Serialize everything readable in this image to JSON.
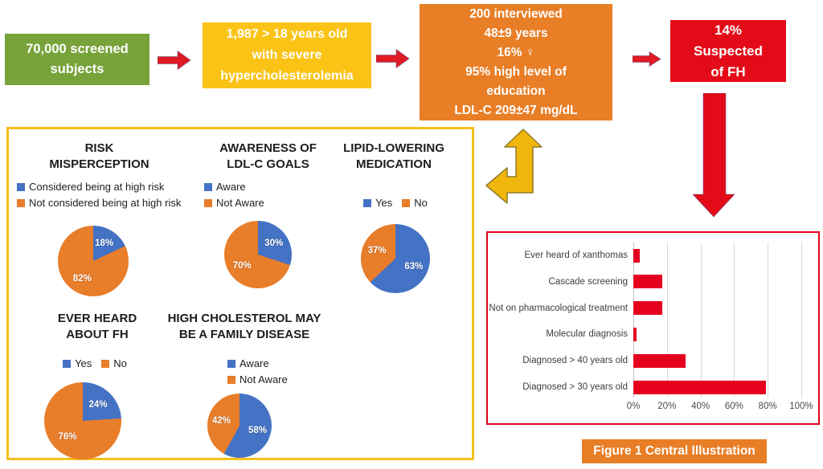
{
  "flow": {
    "box1": {
      "lines": [
        "70,000 screened",
        "subjects"
      ],
      "color": "#77A33A"
    },
    "box2": {
      "lines": [
        "1,987 > 18 years old",
        "with severe",
        "hypercholesterolemia"
      ],
      "color": "#FBC316"
    },
    "box3": {
      "lines": [
        "200 interviewed",
        "48±9 years",
        "16% ♀",
        "95% high level of",
        "education",
        "LDL-C 209±47 mg/dL"
      ],
      "color": "#E87E25"
    },
    "box4": {
      "lines": [
        "14%",
        "Suspected",
        "of FH"
      ],
      "color": "#E30B17"
    }
  },
  "figure_label": "Figure 1 Central Illustration",
  "colors": {
    "green": "#77A33A",
    "yellow": "#FBC316",
    "orange": "#E87E25",
    "red": "#E30B17",
    "bar_red": "#E4001E",
    "pie_blue": "#4472C4",
    "pie_orange": "#E87D2A",
    "survey_panel_border": "#F4C01C",
    "bar_panel_border": "#E3041A",
    "elbow_arrow_yellow": "#F0B60D"
  },
  "chart_data": [
    {
      "type": "pie",
      "id": "risk-misperception",
      "title": "RISK MISPERCEPTION",
      "title_lines": [
        "RISK",
        "MISPERCEPTION"
      ],
      "legend_layout": "stacked",
      "labels": [
        "Considered being at high risk",
        "Not considered being at high risk"
      ],
      "values": [
        18,
        82
      ],
      "value_labels": [
        "18%",
        "82%"
      ],
      "colors": [
        "#4472C4",
        "#E87D2A"
      ]
    },
    {
      "type": "pie",
      "id": "awareness-ldlc-goals",
      "title": "AWARENESS OF LDL-C GOALS",
      "title_lines": [
        "AWARENESS OF",
        "LDL-C GOALS"
      ],
      "legend_layout": "stacked",
      "labels": [
        "Aware",
        "Not Aware"
      ],
      "values": [
        30,
        70
      ],
      "value_labels": [
        "30%",
        "70%"
      ],
      "colors": [
        "#4472C4",
        "#E87D2A"
      ]
    },
    {
      "type": "pie",
      "id": "lipid-lowering-medication",
      "title": "LIPID-LOWERING MEDICATION",
      "title_lines": [
        "LIPID-LOWERING",
        "MEDICATION"
      ],
      "legend_layout": "inline",
      "labels": [
        "Yes",
        "No"
      ],
      "values": [
        63,
        37
      ],
      "value_labels": [
        "63%",
        "37%"
      ],
      "colors": [
        "#4472C4",
        "#E87D2A"
      ]
    },
    {
      "type": "pie",
      "id": "ever-heard-about-fh",
      "title": "EVER HEARD ABOUT FH",
      "title_lines": [
        "EVER HEARD",
        "ABOUT FH"
      ],
      "legend_layout": "inline",
      "labels": [
        "Yes",
        "No"
      ],
      "values": [
        24,
        76
      ],
      "value_labels": [
        "24%",
        "76%"
      ],
      "colors": [
        "#4472C4",
        "#E87D2A"
      ]
    },
    {
      "type": "pie",
      "id": "family-disease-awareness",
      "title": "HIGH CHOLESTEROL MAY BE A FAMILY DISEASE",
      "title_lines": [
        "HIGH CHOLESTEROL MAY",
        "BE A FAMILY DISEASE"
      ],
      "legend_layout": "stacked",
      "labels": [
        "Aware",
        "Not Aware"
      ],
      "values": [
        58,
        42
      ],
      "value_labels": [
        "58%",
        "42%"
      ],
      "colors": [
        "#4472C4",
        "#E87D2A"
      ]
    },
    {
      "type": "bar",
      "id": "suspected-fh-characteristics",
      "orientation": "horizontal",
      "categories": [
        "Ever heard of xanthomas",
        "Cascade screening",
        "Not on pharmacological treatment",
        "Molecular diagnosis",
        "Diagnosed > 40 years old",
        "Diagnosed > 30 years old"
      ],
      "values": [
        4,
        17,
        17,
        2,
        31,
        79
      ],
      "xticks": [
        "0%",
        "20%",
        "40%",
        "60%",
        "80%",
        "100%"
      ],
      "xlim": [
        0,
        100
      ],
      "bar_color": "#E4001E",
      "grid": true,
      "legend_position": "none"
    }
  ]
}
